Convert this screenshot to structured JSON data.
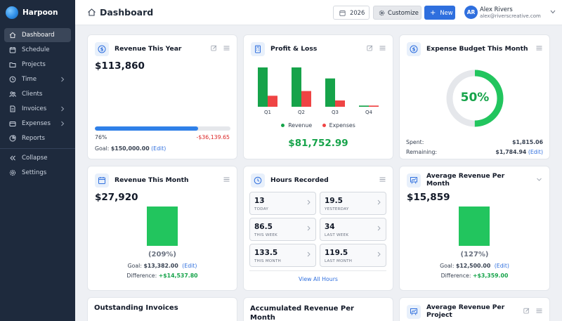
{
  "brand": {
    "name": "Harpoon"
  },
  "sidebar": {
    "items": [
      {
        "label": "Dashboard",
        "icon": "home-icon",
        "active": true
      },
      {
        "label": "Schedule",
        "icon": "calendar-icon"
      },
      {
        "label": "Projects",
        "icon": "folder-icon"
      },
      {
        "label": "Time",
        "icon": "clock-icon",
        "chevron": true
      },
      {
        "label": "Clients",
        "icon": "users-icon"
      },
      {
        "label": "Invoices",
        "icon": "invoice-icon",
        "chevron": true
      },
      {
        "label": "Expenses",
        "icon": "wallet-icon",
        "chevron": true
      },
      {
        "label": "Reports",
        "icon": "reports-icon"
      }
    ],
    "collapse_label": "Collapse",
    "settings_label": "Settings"
  },
  "header": {
    "title": "Dashboard",
    "year": "2026",
    "customize_label": "Customize",
    "new_label": "New",
    "user": {
      "initials": "AR",
      "name": "Alex Rivers",
      "email": "alex@riverscreative.com"
    }
  },
  "cards": {
    "revenue_year": {
      "title": "Revenue This Year",
      "value": "$113,860",
      "progress_percent": 76,
      "percent_label": "76%",
      "difference": "-$36,139.65",
      "goal_label": "Goal:",
      "goal_value": "$150,000.00",
      "edit_label": "(Edit)"
    },
    "profit_loss": {
      "title": "Profit & Loss",
      "total": "$81,752.99"
    },
    "expense_budget": {
      "title": "Expense Budget This Month",
      "percent_label": "50%",
      "percent": 50,
      "spent_label": "Spent:",
      "spent_value": "$1,815.06",
      "remaining_label": "Remaining:",
      "remaining_value": "$1,784.94",
      "edit_label": "(Edit)"
    },
    "revenue_month": {
      "title": "Revenue This Month",
      "value": "$27,920",
      "percent_label": "(209%)",
      "goal_label": "Goal:",
      "goal_value": "$13,382.00",
      "edit_label": "(Edit)",
      "difference_label": "Difference:",
      "difference_value": "+$14,537.80"
    },
    "hours": {
      "title": "Hours Recorded",
      "cells": [
        {
          "value": "13",
          "label": "TODAY"
        },
        {
          "value": "19.5",
          "label": "YESTERDAY"
        },
        {
          "value": "86.5",
          "label": "THIS WEEK"
        },
        {
          "value": "34",
          "label": "LAST WEEK"
        },
        {
          "value": "133.5",
          "label": "THIS MONTH"
        },
        {
          "value": "119.5",
          "label": "LAST MONTH"
        }
      ],
      "view_all_label": "View All Hours"
    },
    "avg_revenue_month": {
      "title_line1": "Average Revenue Per",
      "title_line2": "Month",
      "value": "$15,859",
      "percent_label": "(127%)",
      "goal_label": "Goal:",
      "goal_value": "$12,500.00",
      "edit_label": "(Edit)",
      "difference_label": "Difference:",
      "difference_value": "+$3,359.00"
    },
    "outstanding": {
      "title": "Outstanding Invoices"
    },
    "accumulated": {
      "title_line1": "Accumulated Revenue Per",
      "title_line2": "Month"
    },
    "avg_revenue_project": {
      "title_line1": "Average Revenue Per",
      "title_line2": "Project"
    }
  },
  "chart_data": {
    "type": "bar",
    "categories": [
      "Q1",
      "Q2",
      "Q3",
      "Q4"
    ],
    "series": [
      {
        "name": "Revenue",
        "color": "#16a34a",
        "values": [
          100,
          100,
          72,
          3
        ]
      },
      {
        "name": "Expenses",
        "color": "#ef4444",
        "values": [
          28,
          40,
          16,
          3
        ]
      }
    ],
    "ylim": [
      0,
      100
    ],
    "legend": "bottom"
  }
}
